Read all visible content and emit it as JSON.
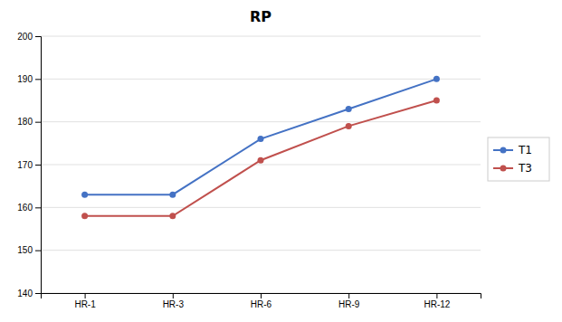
{
  "chart_data": {
    "type": "line",
    "title": "RP",
    "categories": [
      "HR-1",
      "HR-3",
      "HR-6",
      "HR-9",
      "HR-12"
    ],
    "series": [
      {
        "name": "T1",
        "color": "#4472C4",
        "values": [
          163,
          163,
          176,
          183,
          190
        ]
      },
      {
        "name": "T3",
        "color": "#C0504D",
        "values": [
          158,
          158,
          171,
          179,
          185
        ]
      }
    ],
    "ylim": [
      140,
      200
    ],
    "yticks": [
      140,
      150,
      160,
      170,
      180,
      190,
      200
    ],
    "marker": "circle",
    "grid": true,
    "legend": "right"
  }
}
